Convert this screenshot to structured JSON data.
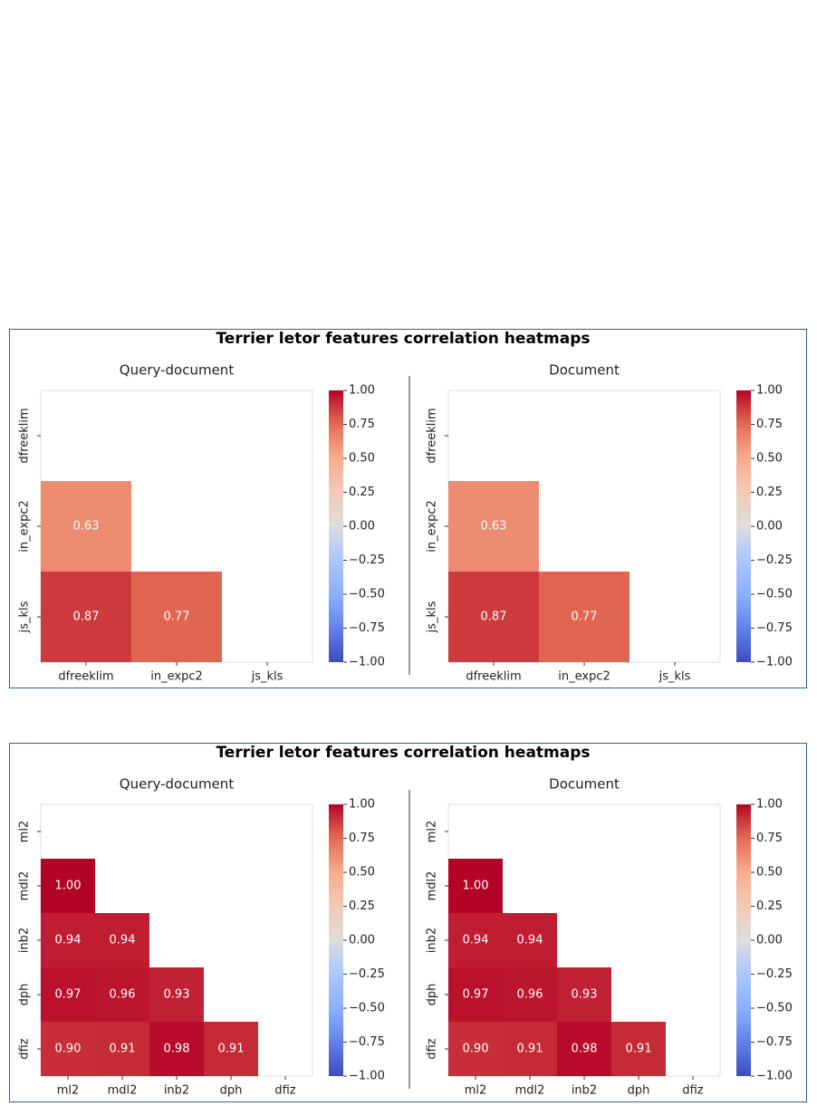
{
  "figures": [
    {
      "title": "Terrier letor features correlation heatmaps",
      "chart_data": [
        {
          "type": "heatmap",
          "title": "Query-document",
          "categories": [
            "dfreeklim",
            "in_expc2",
            "js_kls"
          ],
          "values": [
            [
              null,
              null,
              null
            ],
            [
              0.63,
              null,
              null
            ],
            [
              0.87,
              0.77,
              null
            ]
          ],
          "colormap": "coolwarm",
          "clim": [
            -1,
            1
          ],
          "cticks": [
            {
              "value": 1,
              "label": "1.00"
            },
            {
              "value": 0.75,
              "label": "0.75"
            },
            {
              "value": 0.5,
              "label": "0.50"
            },
            {
              "value": 0.25,
              "label": "0.25"
            },
            {
              "value": 0,
              "label": "0.00"
            },
            {
              "value": -0.25,
              "label": "−0.25"
            },
            {
              "value": -0.5,
              "label": "−0.50"
            },
            {
              "value": -0.75,
              "label": "−0.75"
            },
            {
              "value": -1,
              "label": "−1.00"
            }
          ]
        },
        {
          "type": "heatmap",
          "title": "Document",
          "categories": [
            "dfreeklim",
            "in_expc2",
            "js_kls"
          ],
          "values": [
            [
              null,
              null,
              null
            ],
            [
              0.63,
              null,
              null
            ],
            [
              0.87,
              0.77,
              null
            ]
          ],
          "colormap": "coolwarm",
          "clim": [
            -1,
            1
          ],
          "cticks": [
            {
              "value": 1,
              "label": "1.00"
            },
            {
              "value": 0.75,
              "label": "0.75"
            },
            {
              "value": 0.5,
              "label": "0.50"
            },
            {
              "value": 0.25,
              "label": "0.25"
            },
            {
              "value": 0,
              "label": "0.00"
            },
            {
              "value": -0.25,
              "label": "−0.25"
            },
            {
              "value": -0.5,
              "label": "−0.50"
            },
            {
              "value": -0.75,
              "label": "−0.75"
            },
            {
              "value": -1,
              "label": "−1.00"
            }
          ]
        }
      ]
    },
    {
      "title": "Terrier letor features correlation heatmaps",
      "chart_data": [
        {
          "type": "heatmap",
          "title": "Query-document",
          "categories": [
            "ml2",
            "mdl2",
            "inb2",
            "dph",
            "dfiz"
          ],
          "values": [
            [
              null,
              null,
              null,
              null,
              null
            ],
            [
              1,
              null,
              null,
              null,
              null
            ],
            [
              0.94,
              0.94,
              null,
              null,
              null
            ],
            [
              0.97,
              0.96,
              0.93,
              null,
              null
            ],
            [
              0.9,
              0.91,
              0.98,
              0.91,
              null
            ]
          ],
          "value_labels": [
            [
              null,
              null,
              null,
              null,
              null
            ],
            [
              "1.00",
              null,
              null,
              null,
              null
            ],
            [
              "0.94",
              "0.94",
              null,
              null,
              null
            ],
            [
              "0.97",
              "0.96",
              "0.93",
              null,
              null
            ],
            [
              "0.90",
              "0.91",
              "0.98",
              "0.91",
              null
            ]
          ],
          "colormap": "coolwarm",
          "clim": [
            -1,
            1
          ],
          "cticks": [
            {
              "value": 1,
              "label": "1.00"
            },
            {
              "value": 0.75,
              "label": "0.75"
            },
            {
              "value": 0.5,
              "label": "0.50"
            },
            {
              "value": 0.25,
              "label": "0.25"
            },
            {
              "value": 0,
              "label": "0.00"
            },
            {
              "value": -0.25,
              "label": "−0.25"
            },
            {
              "value": -0.5,
              "label": "−0.50"
            },
            {
              "value": -0.75,
              "label": "−0.75"
            },
            {
              "value": -1,
              "label": "−1.00"
            }
          ]
        },
        {
          "type": "heatmap",
          "title": "Document",
          "categories": [
            "ml2",
            "mdl2",
            "inb2",
            "dph",
            "dfiz"
          ],
          "values": [
            [
              null,
              null,
              null,
              null,
              null
            ],
            [
              1,
              null,
              null,
              null,
              null
            ],
            [
              0.94,
              0.94,
              null,
              null,
              null
            ],
            [
              0.97,
              0.96,
              0.93,
              null,
              null
            ],
            [
              0.9,
              0.91,
              0.98,
              0.91,
              null
            ]
          ],
          "value_labels": [
            [
              null,
              null,
              null,
              null,
              null
            ],
            [
              "1.00",
              null,
              null,
              null,
              null
            ],
            [
              "0.94",
              "0.94",
              null,
              null,
              null
            ],
            [
              "0.97",
              "0.96",
              "0.93",
              null,
              null
            ],
            [
              "0.90",
              "0.91",
              "0.98",
              "0.91",
              null
            ]
          ],
          "colormap": "coolwarm",
          "clim": [
            -1,
            1
          ],
          "cticks": [
            {
              "value": 1,
              "label": "1.00"
            },
            {
              "value": 0.75,
              "label": "0.75"
            },
            {
              "value": 0.5,
              "label": "0.50"
            },
            {
              "value": 0.25,
              "label": "0.25"
            },
            {
              "value": 0,
              "label": "0.00"
            },
            {
              "value": -0.25,
              "label": "−0.25"
            },
            {
              "value": -0.5,
              "label": "−0.50"
            },
            {
              "value": -0.75,
              "label": "−0.75"
            },
            {
              "value": -1,
              "label": "−1.00"
            }
          ]
        }
      ]
    }
  ]
}
